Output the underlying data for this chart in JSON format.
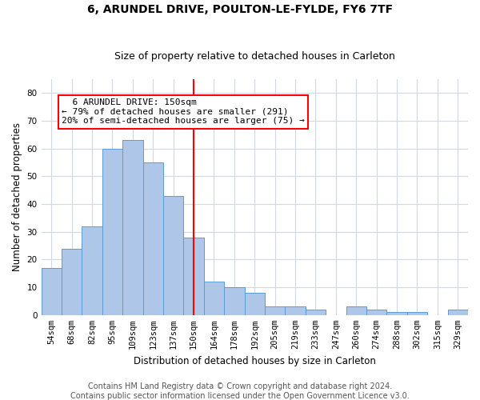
{
  "title": "6, ARUNDEL DRIVE, POULTON-LE-FYLDE, FY6 7TF",
  "subtitle": "Size of property relative to detached houses in Carleton",
  "xlabel": "Distribution of detached houses by size in Carleton",
  "ylabel": "Number of detached properties",
  "bar_labels": [
    "54sqm",
    "68sqm",
    "82sqm",
    "95sqm",
    "109sqm",
    "123sqm",
    "137sqm",
    "150sqm",
    "164sqm",
    "178sqm",
    "192sqm",
    "205sqm",
    "219sqm",
    "233sqm",
    "247sqm",
    "260sqm",
    "274sqm",
    "288sqm",
    "302sqm",
    "315sqm",
    "329sqm"
  ],
  "bar_values": [
    17,
    24,
    32,
    60,
    63,
    55,
    43,
    28,
    12,
    10,
    8,
    3,
    3,
    2,
    0,
    3,
    2,
    1,
    1,
    0,
    2
  ],
  "bar_color": "#aec6e8",
  "bar_edgecolor": "#5b9bd5",
  "reference_line_x": 7,
  "annotation_text": "  6 ARUNDEL DRIVE: 150sqm\n← 79% of detached houses are smaller (291)\n20% of semi-detached houses are larger (75) →",
  "ylim": [
    0,
    85
  ],
  "yticks": [
    0,
    10,
    20,
    30,
    40,
    50,
    60,
    70,
    80
  ],
  "footer_line1": "Contains HM Land Registry data © Crown copyright and database right 2024.",
  "footer_line2": "Contains public sector information licensed under the Open Government Licence v3.0.",
  "background_color": "#ffffff",
  "grid_color": "#d0d8e8",
  "title_fontsize": 10,
  "subtitle_fontsize": 9,
  "axis_label_fontsize": 8.5,
  "tick_fontsize": 7.5,
  "annotation_fontsize": 8,
  "footer_fontsize": 7
}
